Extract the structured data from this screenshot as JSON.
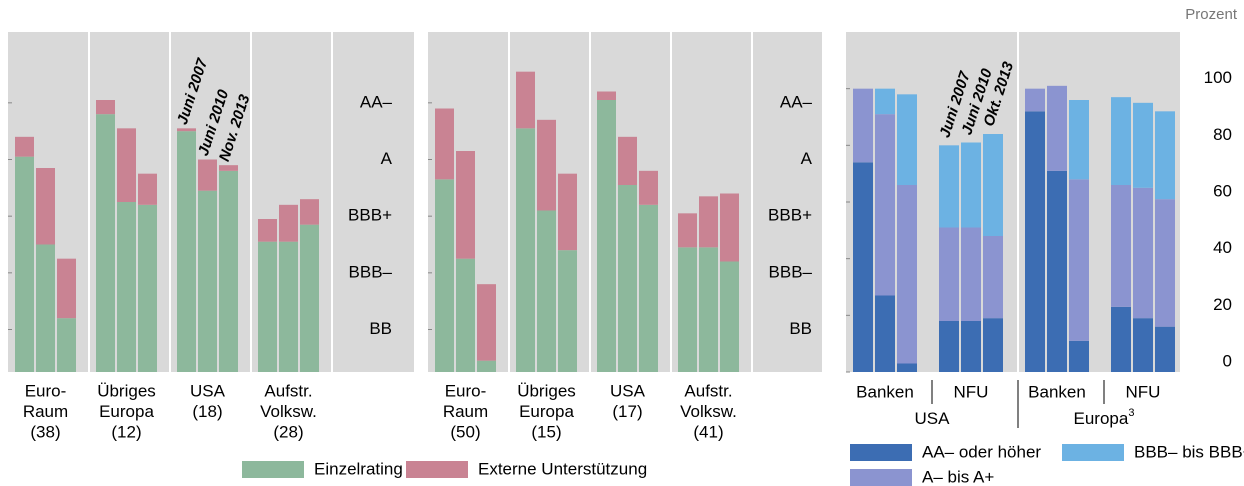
{
  "chart_data": [
    {
      "type": "bar",
      "stacked": true,
      "groups": [
        [
          "Euro-",
          "Raum",
          "(38)"
        ],
        [
          "Übriges",
          "Europa",
          "(12)"
        ],
        [
          "USA",
          "(18)"
        ],
        [
          "Aufstr.",
          "Volksw.",
          "(28)"
        ]
      ],
      "annotations": [
        "Juni 2007",
        "Juni 2010",
        "Nov. 2013"
      ],
      "series": [
        {
          "name": "Einzelrating",
          "color": "#8db89c",
          "values": [
            [
              7.6,
              4.5,
              1.9
            ],
            [
              9.1,
              6.0,
              5.9
            ],
            [
              8.5,
              6.4,
              7.1
            ],
            [
              4.6,
              4.6,
              5.2
            ]
          ]
        },
        {
          "name": "Externe Unterstützung",
          "color": "#c98393",
          "values": [
            [
              0.7,
              2.7,
              2.1
            ],
            [
              0.5,
              2.6,
              1.1
            ],
            [
              0.1,
              1.1,
              0.2
            ],
            [
              0.8,
              1.3,
              0.9
            ]
          ]
        }
      ],
      "ylim": [
        0,
        12
      ],
      "yticks": [
        {
          "value": 1.5,
          "label": "BB"
        },
        {
          "value": 3.5,
          "label": "BBB–"
        },
        {
          "value": 5.5,
          "label": "BBB+"
        },
        {
          "value": 7.5,
          "label": "A"
        },
        {
          "value": 9.5,
          "label": "AA–"
        }
      ],
      "background": "#d9d9d9"
    },
    {
      "type": "bar",
      "stacked": true,
      "groups": [
        [
          "Euro-",
          "Raum",
          "(50)"
        ],
        [
          "Übriges",
          "Europa",
          "(15)"
        ],
        [
          "USA",
          "(17)"
        ],
        [
          "Aufstr.",
          "Volksw.",
          "(41)"
        ]
      ],
      "series": [
        {
          "color": "#8db89c",
          "values": [
            [
              6.8,
              4.0,
              0.4
            ],
            [
              8.6,
              5.7,
              4.3
            ],
            [
              9.6,
              6.6,
              5.9
            ],
            [
              4.4,
              4.4,
              3.9
            ]
          ]
        },
        {
          "color": "#c98393",
          "values": [
            [
              2.5,
              3.8,
              2.7
            ],
            [
              2.0,
              3.2,
              2.7
            ],
            [
              0.3,
              1.7,
              1.2
            ],
            [
              1.2,
              1.8,
              2.4
            ]
          ]
        }
      ],
      "ylim": [
        0,
        12
      ],
      "yticks": [
        {
          "value": 1.5,
          "label": "BB"
        },
        {
          "value": 3.5,
          "label": "BBB–"
        },
        {
          "value": 5.5,
          "label": "BBB+"
        },
        {
          "value": 7.5,
          "label": "A"
        },
        {
          "value": 9.5,
          "label": "AA–"
        }
      ],
      "background": "#d9d9d9"
    },
    {
      "type": "bar",
      "stacked": true,
      "y_unit": "Prozent",
      "groups": [
        "Banken",
        "NFU",
        "Banken",
        "NFU"
      ],
      "supergroups": [
        {
          "name": "USA"
        },
        {
          "name": "Europa",
          "footnote": "3"
        }
      ],
      "annotations": [
        "Juni 2007",
        "Juni 2010",
        "Okt. 2013"
      ],
      "series": [
        {
          "name": "AA– oder höher",
          "color": "#3c6db3",
          "values": [
            [
              74,
              27,
              3
            ],
            [
              18,
              18,
              19
            ],
            [
              92,
              71,
              11
            ],
            [
              23,
              19,
              16
            ]
          ]
        },
        {
          "name": "A– bis A+",
          "color": "#8b94d0",
          "values": [
            [
              26,
              64,
              63
            ],
            [
              33,
              33,
              29
            ],
            [
              8,
              30,
              57
            ],
            [
              43,
              46,
              45
            ]
          ]
        },
        {
          "name": "BBB– bis BBB+",
          "color": "#6cb2e3",
          "values": [
            [
              0,
              9,
              32
            ],
            [
              29,
              30,
              36
            ],
            [
              0,
              0,
              28
            ],
            [
              31,
              30,
              31
            ]
          ]
        }
      ],
      "ylim": [
        0,
        120
      ],
      "yticks": [
        0,
        20,
        40,
        60,
        80,
        100
      ],
      "background": "#d9d9d9"
    }
  ]
}
